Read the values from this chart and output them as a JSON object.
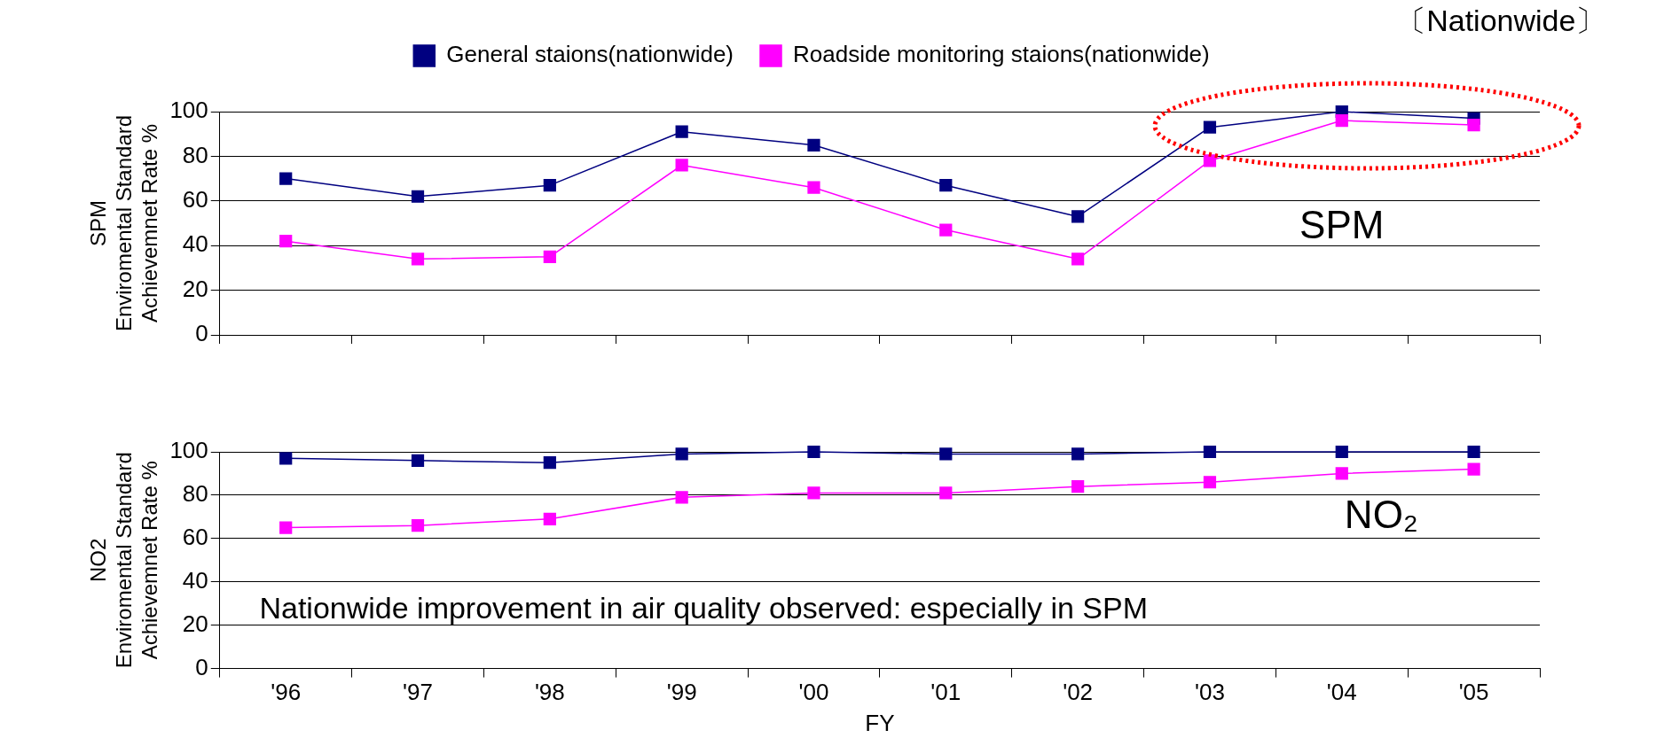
{
  "chart_data": [
    {
      "type": "line",
      "ylabel": "SPM Enviromental Standard Achievemnet Rate %",
      "categories": [
        null,
        null,
        null,
        null,
        null,
        null,
        null,
        null,
        null,
        null
      ],
      "series": [
        {
          "name": "General staions(nationwide)",
          "color": "#000080",
          "values": [
            70,
            62,
            67,
            91,
            85,
            67,
            53,
            93,
            100,
            97
          ]
        },
        {
          "name": "Roadside monitoring staions(nationwide)",
          "color": "#ff00ff",
          "values": [
            42,
            34,
            35,
            76,
            66,
            47,
            34,
            78,
            96,
            94
          ]
        }
      ],
      "ylim": [
        0,
        100
      ],
      "yticks": [
        0,
        20,
        40,
        60,
        80,
        100
      ],
      "grid": "y",
      "legend": "top",
      "marker": "square",
      "line_style": "solid",
      "tick_labels": "y",
      "annotations": [
        "〔Nationwide〕",
        "SPM"
      ]
    },
    {
      "type": "line",
      "ylabel": "NO2 Enviromental Standard Achievemnet Rate %",
      "xlabel": "FY",
      "categories": [
        "'96",
        "'97",
        "'98",
        "'99",
        "'00",
        "'01",
        "'02",
        "'03",
        "'04",
        "'05"
      ],
      "series": [
        {
          "color": "#000080",
          "values": [
            97,
            96,
            95,
            99,
            100,
            99,
            99,
            100,
            100,
            100
          ]
        },
        {
          "color": "#ff00ff",
          "values": [
            65,
            66,
            69,
            79,
            81,
            81,
            84,
            86,
            90,
            92
          ]
        }
      ],
      "ylim": [
        0,
        100
      ],
      "yticks": [
        0,
        20,
        40,
        60,
        80,
        100
      ],
      "grid": "y",
      "legend": false,
      "marker": "square",
      "line_style": "solid",
      "annotations": [
        "NO₂",
        "Nationwide improvement in air quality observed: especially in SPM"
      ]
    }
  ]
}
